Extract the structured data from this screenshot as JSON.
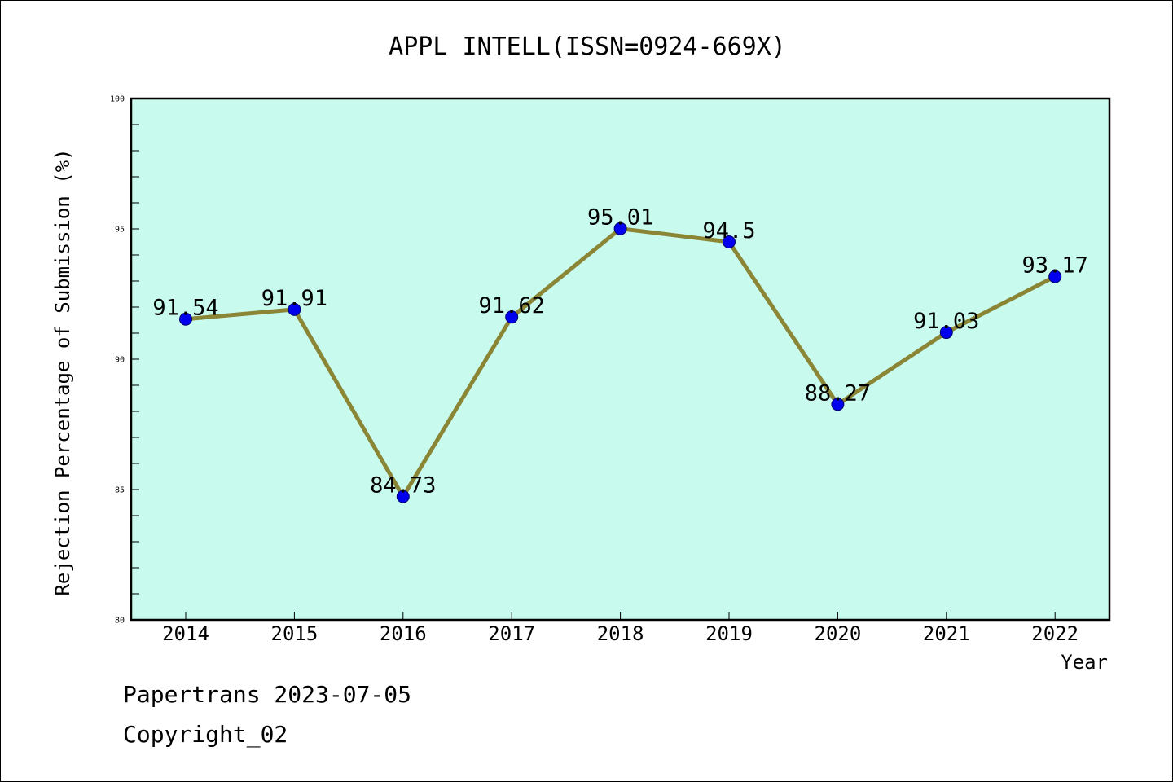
{
  "chart_data": {
    "type": "line",
    "title": "APPL INTELL(ISSN=0924-669X)",
    "xlabel": "Year",
    "ylabel": "Rejection Percentage of Submission (%)",
    "categories": [
      "2014",
      "2015",
      "2016",
      "2017",
      "2018",
      "2019",
      "2020",
      "2021",
      "2022"
    ],
    "series": [
      {
        "values": [
          91.54,
          91.91,
          84.73,
          91.62,
          95.01,
          94.5,
          88.27,
          91.03,
          93.17
        ],
        "labels": [
          "91.54",
          "91.91",
          "84.73",
          "91.62",
          "95.01",
          "94.5",
          "88.27",
          "91.03",
          "93.17"
        ]
      }
    ],
    "ylim": [
      80,
      100
    ],
    "yticks": [
      "80",
      "85",
      "90",
      "95",
      "100"
    ],
    "grid": false,
    "legend": "none",
    "colors": {
      "plot_background": "#c8fbee",
      "line": "#8b8536",
      "marker": "#0000ee",
      "axes": "#000000"
    }
  },
  "footer": {
    "line1": "Papertrans 2023-07-05",
    "line2": "Copyright_02"
  }
}
